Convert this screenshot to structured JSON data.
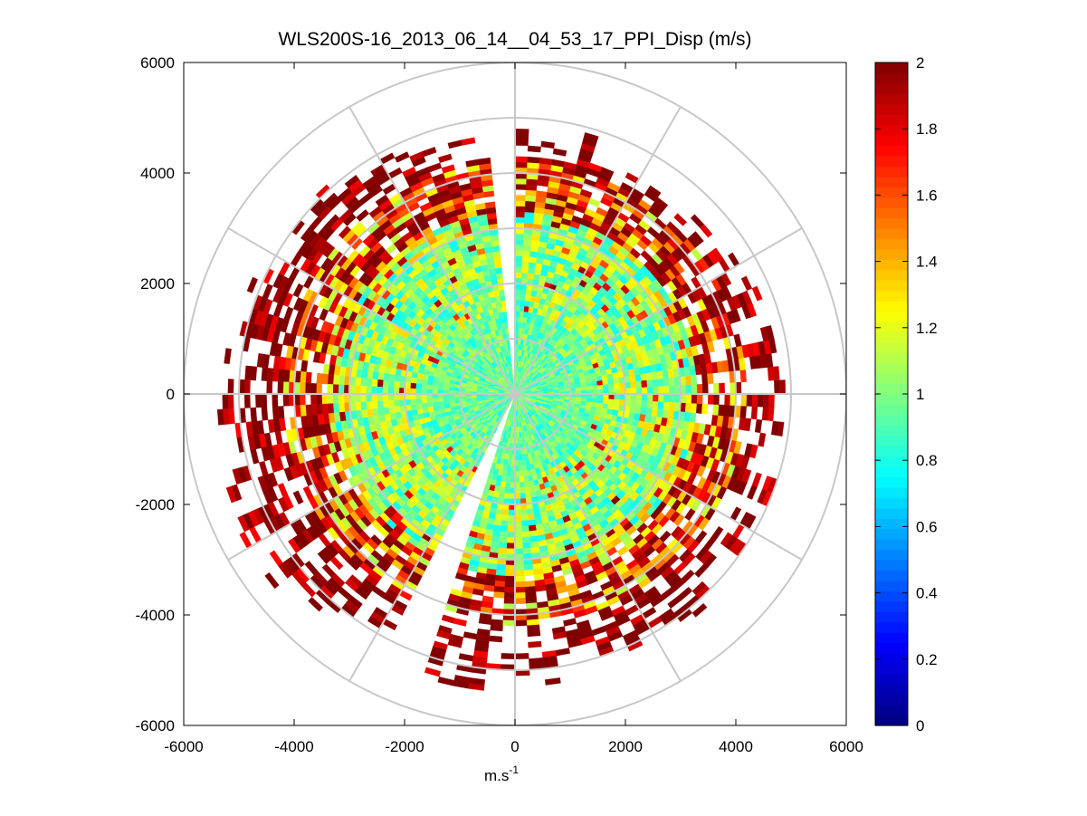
{
  "chart_data": {
    "type": "heatmap",
    "subtype": "polar-ppi",
    "title": "WLS200S-16_2013_06_14__04_53_17_PPI_Disp (m/s)",
    "xlabel": "m.s",
    "xlabel_superscript": "-1",
    "ylabel": "",
    "xlim": [
      -6000,
      6000
    ],
    "ylim": [
      -6000,
      6000
    ],
    "xticks": [
      -6000,
      -4000,
      -2000,
      0,
      2000,
      4000,
      6000
    ],
    "yticks": [
      -6000,
      -4000,
      -2000,
      0,
      2000,
      4000,
      6000
    ],
    "xtick_labels": [
      "-6000",
      "-4000",
      "-2000",
      "0",
      "2000",
      "4000",
      "6000"
    ],
    "ytick_labels": [
      "-6000",
      "-4000",
      "-2000",
      "0",
      "2000",
      "4000",
      "6000"
    ],
    "polar_grid": {
      "rings_m": [
        1000,
        2000,
        3000,
        4000,
        5000,
        6000
      ],
      "spokes_deg": [
        0,
        30,
        60,
        90,
        120,
        150,
        180,
        210,
        240,
        270,
        300,
        330
      ],
      "color": "#c8c8c8"
    },
    "data_description": {
      "value_range": [
        0,
        2
      ],
      "max_range_m": 5900,
      "range_gate_m": 100,
      "azimuth_step_deg": 3,
      "gaps_math_deg": [
        [
          88,
          95
        ],
        [
          243,
          250
        ]
      ],
      "low_mean_gate_m": 1500,
      "mid_mean_gate_m": 3000,
      "high_edge_start_m": 3300,
      "outer_sparse_start_m": 4200
    },
    "colorbar": {
      "colormap": "jet",
      "min": 0,
      "max": 2,
      "ticks": [
        0,
        0.2,
        0.4,
        0.6,
        0.8,
        1,
        1.2,
        1.4,
        1.6,
        1.8,
        2
      ],
      "tick_labels": [
        "0",
        "0.2",
        "0.4",
        "0.6",
        "0.8",
        "1",
        "1.2",
        "1.4",
        "1.6",
        "1.8",
        "2"
      ]
    }
  }
}
